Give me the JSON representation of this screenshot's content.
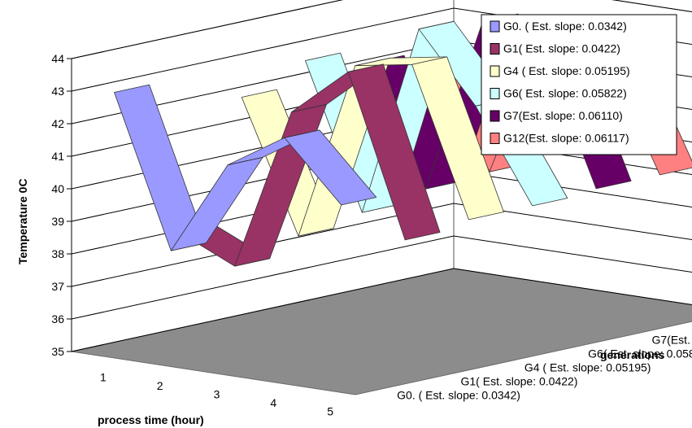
{
  "chart_data": {
    "type": "line",
    "style": "3d-ribbon",
    "title": "",
    "xlabel": "process time (hour)",
    "ylabel": "Temperature 0C",
    "zlabel": "generations",
    "categories": [
      "1",
      "2",
      "3",
      "4",
      "5"
    ],
    "ylim": [
      35,
      44
    ],
    "yticks": [
      "35",
      "36",
      "37",
      "38",
      "39",
      "40",
      "41",
      "42",
      "43",
      "44"
    ],
    "grid": true,
    "legend_position": "top-right",
    "series": [
      {
        "name": "G0. ( Est. slope: 0.0342)",
        "color": "#9999ff",
        "values": [
          43,
          38.4,
          41.3,
          42.4,
          40.6
        ]
      },
      {
        "name": "G1( Est. slope: 0.0422)",
        "color": "#993366",
        "values": [
          38.3,
          37.5,
          42.5,
          44.0,
          39.1
        ]
      },
      {
        "name": "G4 ( Est. slope: 0.05195)",
        "color": "#ffffcc",
        "values": [
          42.0,
          38.0,
          43.5,
          43.8,
          39.3
        ]
      },
      {
        "name": "G6( Est. slope: 0.05822)",
        "color": "#ccffff",
        "values": [
          42.7,
          38.3,
          44.2,
          42.1,
          39.3
        ]
      },
      {
        "name": "G7(Est. slope: 0.06110)",
        "color": "#660066",
        "values": [
          42.2,
          38.6,
          44.0,
          43.7,
          39.4
        ]
      },
      {
        "name": "G12(Est. slope: 0.06117)",
        "color": "#ff8080",
        "values": [
          42.0,
          38.7,
          43.4,
          43.0,
          39.4
        ]
      }
    ]
  }
}
